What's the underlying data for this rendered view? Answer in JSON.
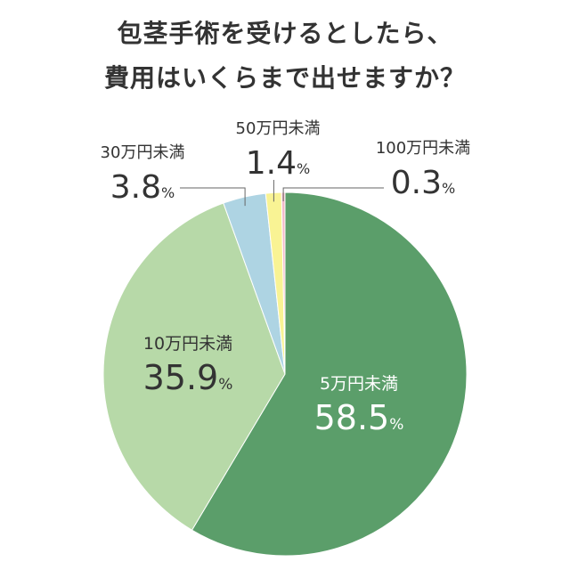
{
  "title_lines": [
    "包茎手術を受けるとしたら、",
    "費用はいくらまで出せますか？"
  ],
  "colors": {
    "under_50k": "#5b9e6a",
    "under_100k": "#b7d9a8",
    "under_300k": "#aed4e3",
    "under_500k": "#f9f394",
    "under_1m": "#f4b9c8",
    "leader": "#666666",
    "text_dark": "#333333",
    "text_light": "#ffffff"
  },
  "chart_data": {
    "type": "pie",
    "title": "包茎手術を受けるとしたら、費用はいくらまで出せますか？",
    "start_angle_deg": 0,
    "direction": "clockwise",
    "slices": [
      {
        "label": "5万円未満",
        "value": 58.5,
        "display": "58.5",
        "unit": "%",
        "color_key": "under_50k"
      },
      {
        "label": "10万円未満",
        "value": 35.9,
        "display": "35.9",
        "unit": "%",
        "color_key": "under_100k"
      },
      {
        "label": "30万円未満",
        "value": 3.8,
        "display": "3.8",
        "unit": "%",
        "color_key": "under_300k"
      },
      {
        "label": "50万円未満",
        "value": 1.4,
        "display": "1.4",
        "unit": "%",
        "color_key": "under_500k"
      },
      {
        "label": "100万円未満",
        "value": 0.3,
        "display": "0.3",
        "unit": "%",
        "color_key": "under_1m"
      }
    ]
  }
}
